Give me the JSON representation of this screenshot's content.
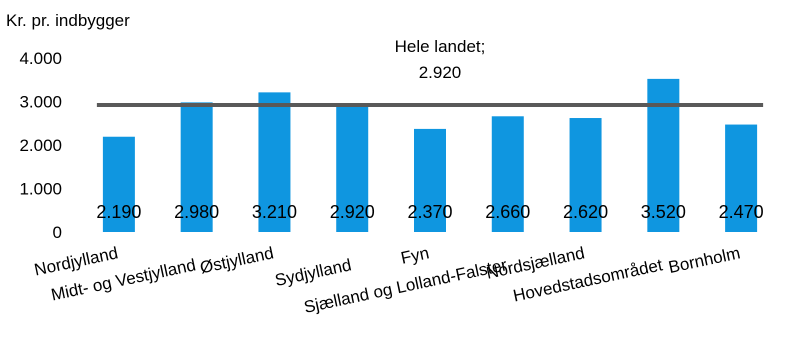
{
  "chart_data": {
    "type": "bar",
    "ylabel": "Kr. pr. indbygger",
    "ylim": [
      0,
      4000
    ],
    "yticks": [
      {
        "value": 0,
        "label": "0"
      },
      {
        "value": 1000,
        "label": "1.000"
      },
      {
        "value": 2000,
        "label": "2.000"
      },
      {
        "value": 3000,
        "label": "3.000"
      },
      {
        "value": 4000,
        "label": "4.000"
      }
    ],
    "categories": [
      "Nordjylland",
      "Midt- og Vestjylland",
      "Østjylland",
      "Sydjylland",
      "Fyn",
      "Sjælland og Lolland-Falster",
      "Nordsjælland",
      "Hovedstadsområdet",
      "Bornholm"
    ],
    "values": [
      2190,
      2980,
      3210,
      2920,
      2370,
      2660,
      2620,
      3520,
      2470
    ],
    "value_labels": [
      "2.190",
      "2.980",
      "3.210",
      "2.920",
      "2.370",
      "2.660",
      "2.620",
      "3.520",
      "2.470"
    ],
    "reference_line": {
      "value": 2920,
      "label_line1": "Hele landet;",
      "label_line2": "2.920"
    },
    "colors": {
      "bar": "#0F96E0",
      "reference_line": "#595959"
    },
    "grid": false,
    "legend": "none"
  }
}
